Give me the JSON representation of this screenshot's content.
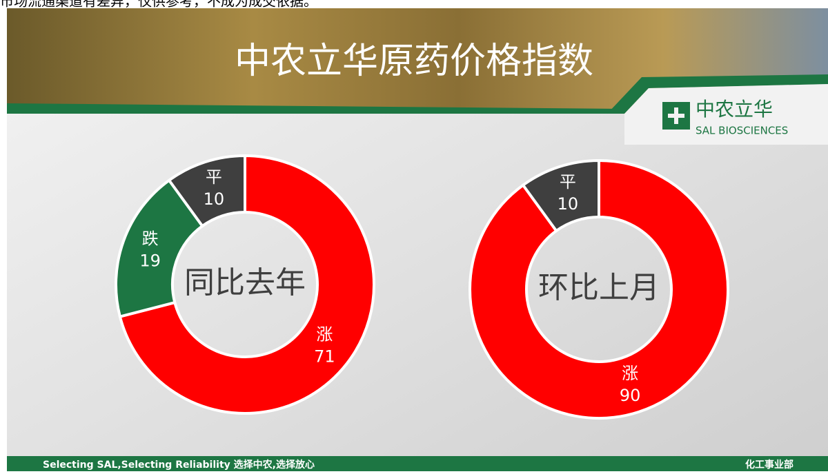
{
  "note": "市场流通渠道有差异，仅供参考，不成为成交依据。",
  "banner_title": "中农立华原药价格指数",
  "logo": {
    "name": "中农立华",
    "english": "SAL BIOSCIENCES"
  },
  "footer": {
    "slogan": "Selecting SAL,Selecting Reliability 选择中农,选择放心",
    "department": "化工事业部"
  },
  "chart_data": [
    {
      "type": "donut",
      "title": "同比去年",
      "categories": [
        "涨",
        "跌",
        "平"
      ],
      "values": [
        71,
        19,
        10
      ],
      "colors": [
        "#ff0000",
        "#1d7643",
        "#3f3f3f"
      ]
    },
    {
      "type": "donut",
      "title": "环比上月",
      "categories": [
        "涨",
        "平"
      ],
      "values": [
        90,
        10
      ],
      "colors": [
        "#ff0000",
        "#3f3f3f"
      ]
    }
  ]
}
